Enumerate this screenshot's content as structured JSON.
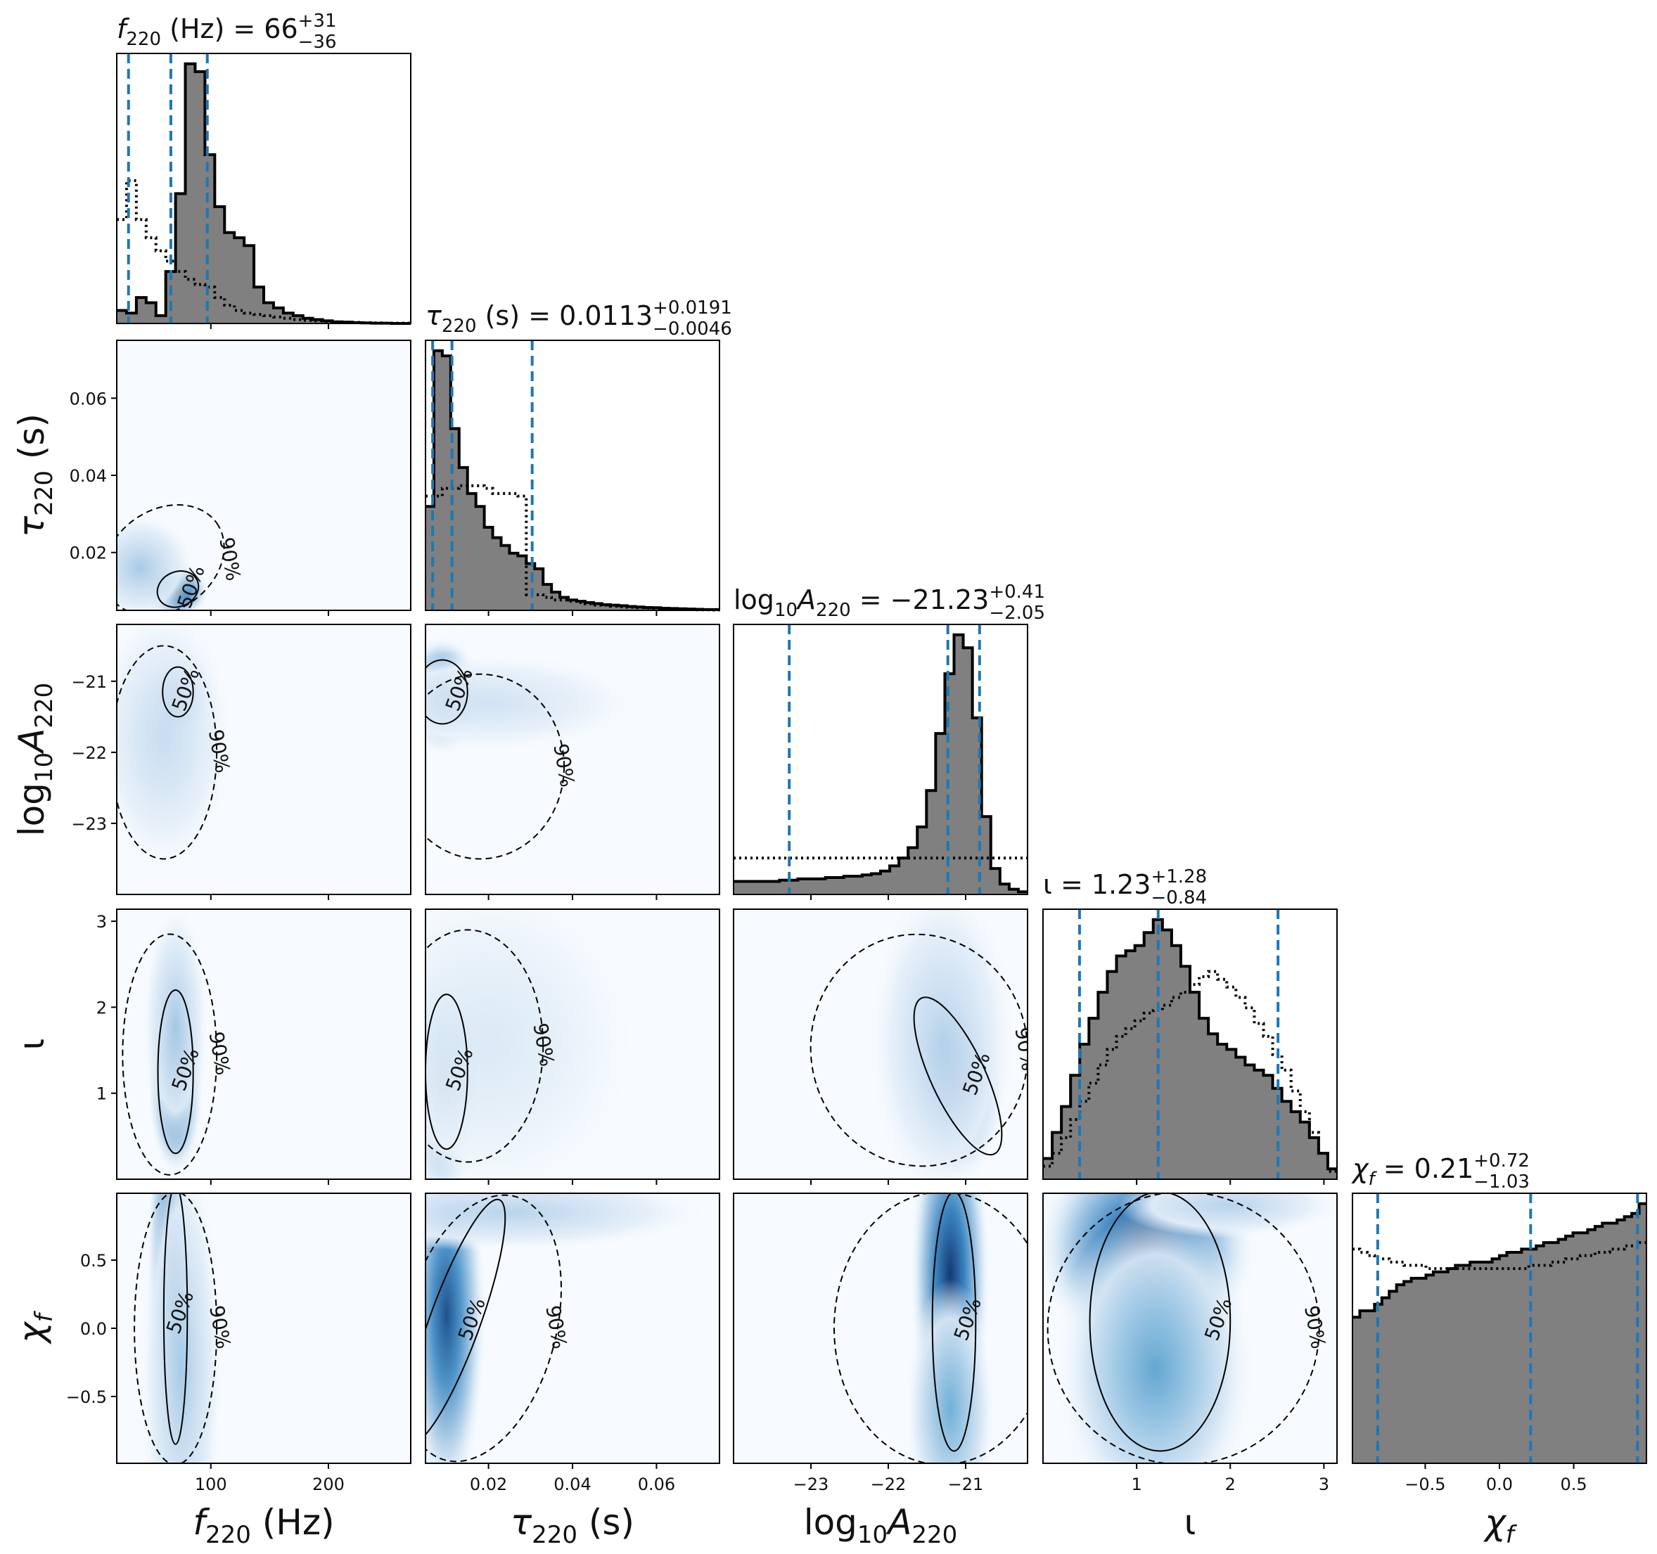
{
  "chart_data": {
    "type": "corner",
    "parameters": [
      {
        "id": "f220",
        "label": "f220 (Hz)",
        "title": "f220 (Hz) = 66+31−36",
        "median": 66,
        "plus": 31,
        "minus": 36,
        "range": [
          20,
          270
        ],
        "ticks": [
          100,
          200
        ],
        "tick_labels": [
          "100",
          "200"
        ]
      },
      {
        "id": "tau220",
        "label": "τ220 (s)",
        "title": "τ220 (s) = 0.0113+0.0191−0.0046",
        "median": 0.0113,
        "plus": 0.0191,
        "minus": 0.0046,
        "range": [
          0.005,
          0.075
        ],
        "ticks": [
          0.02,
          0.04,
          0.06
        ],
        "tick_labels": [
          "0.02",
          "0.04",
          "0.06"
        ]
      },
      {
        "id": "logA",
        "label": "log10A220",
        "title": "log10A220 = −21.23+0.41−2.05",
        "median": -21.23,
        "plus": 0.41,
        "minus": 2.05,
        "range": [
          -24.0,
          -20.2
        ],
        "ticks": [
          -23,
          -22,
          -21
        ],
        "tick_labels": [
          "−23",
          "−22",
          "−21"
        ]
      },
      {
        "id": "iota",
        "label": "ι",
        "title": "ι = 1.23+1.28−0.84",
        "median": 1.23,
        "plus": 1.28,
        "minus": 0.84,
        "range": [
          0.0,
          3.14
        ],
        "ticks": [
          1,
          2,
          3
        ],
        "tick_labels": [
          "1",
          "2",
          "3"
        ]
      },
      {
        "id": "chi",
        "label": "χf",
        "title": "χf = 0.21+0.72−1.03",
        "median": 0.21,
        "plus": 0.72,
        "minus": 1.03,
        "range": [
          -0.99,
          0.99
        ],
        "ticks": [
          -0.5,
          0.0,
          0.5
        ],
        "tick_labels": [
          "−0.5",
          "0.0",
          "0.5"
        ]
      }
    ],
    "histograms": {
      "f220": {
        "posterior": [
          5,
          4,
          10,
          8,
          3,
          20,
          50,
          100,
          97,
          65,
          45,
          35,
          33,
          30,
          14,
          8,
          6,
          4,
          3,
          2,
          1.5,
          1,
          0.6,
          0.5,
          0.3,
          0.2,
          0.1,
          0.1,
          0,
          0
        ],
        "prior": [
          40,
          55,
          40,
          33,
          28,
          24,
          20,
          17,
          15,
          14,
          10,
          7,
          5,
          4,
          3.5,
          3,
          2.5,
          2,
          1.5,
          1.2,
          1,
          0.8,
          0.6,
          0.5,
          0.4,
          0.3,
          0.2,
          0.1,
          0.1,
          0.1
        ]
      },
      "tau220": {
        "posterior": [
          40,
          100,
          98,
          70,
          55,
          45,
          40,
          32,
          28,
          25,
          22,
          21,
          18,
          16,
          10,
          7,
          5,
          4,
          3.5,
          3,
          2.6,
          2.2,
          2,
          1.8,
          1.5,
          1.3,
          1.1,
          1,
          0.8,
          0.7,
          0.6,
          0.5,
          0.4,
          0.3,
          0.3
        ],
        "prior": [
          44,
          44,
          47,
          47,
          48,
          48,
          48,
          47,
          45,
          45,
          45,
          44,
          6,
          6,
          5,
          4,
          4,
          3.5,
          3,
          2.5,
          2,
          2,
          1.6,
          1.4,
          1.2,
          1,
          0.9,
          0.8,
          0.6,
          0.5,
          0.4,
          0.3,
          0.2,
          0.2,
          0.1
        ]
      },
      "logA": {
        "posterior": [
          5,
          5,
          5,
          5,
          5,
          5.5,
          5.5,
          6,
          6,
          6,
          6.5,
          6.5,
          7,
          7,
          7.5,
          8,
          9,
          11,
          14,
          18,
          26,
          40,
          62,
          85,
          100,
          95,
          68,
          30,
          10,
          4,
          2,
          1
        ],
        "prior": [
          14,
          14,
          14,
          14,
          14,
          14,
          14,
          14,
          14,
          14,
          14,
          14,
          14,
          14,
          14,
          14,
          14,
          14,
          14,
          14,
          14,
          14,
          14,
          14,
          14,
          14,
          14,
          14,
          14,
          14,
          14,
          14
        ]
      },
      "iota": {
        "posterior": [
          8,
          18,
          28,
          40,
          52,
          62,
          72,
          80,
          86,
          88,
          90,
          95,
          100,
          96,
          90,
          82,
          72,
          62,
          56,
          52,
          50,
          47,
          44,
          42,
          40,
          35,
          30,
          26,
          22,
          16,
          10,
          4
        ],
        "prior": [
          5,
          10,
          16,
          23,
          30,
          37,
          44,
          50,
          55,
          58,
          61,
          64,
          65,
          67,
          70,
          72,
          75,
          78,
          80,
          77,
          74,
          70,
          66,
          60,
          55,
          48,
          42,
          34,
          26,
          18,
          10,
          3
        ]
      },
      "chi": {
        "posterior": [
          45,
          47,
          47,
          49,
          51,
          53,
          55,
          56,
          57,
          57,
          58,
          59,
          59,
          60,
          61,
          61,
          62,
          62,
          62,
          63,
          64,
          65,
          65,
          66,
          66,
          67,
          68,
          68,
          69,
          70,
          71,
          71,
          72,
          73,
          74,
          74,
          75,
          76,
          77,
          80
        ],
        "prior": [
          66,
          65,
          64,
          63,
          63,
          62,
          62,
          61,
          61,
          61,
          60,
          60,
          60,
          60,
          60,
          60,
          60,
          60,
          60,
          60,
          60,
          60,
          60,
          60,
          61,
          61,
          61,
          62,
          62,
          63,
          63,
          64,
          64,
          65,
          65,
          66,
          66,
          67,
          67,
          68
        ]
      }
    },
    "contour_levels": [
      "50%",
      "90%"
    ],
    "posterior_hist_color": "#808080",
    "prior_hist_style": "dotted",
    "quantile_line_color": "#1f77b4",
    "density_colormap": "Blues"
  }
}
